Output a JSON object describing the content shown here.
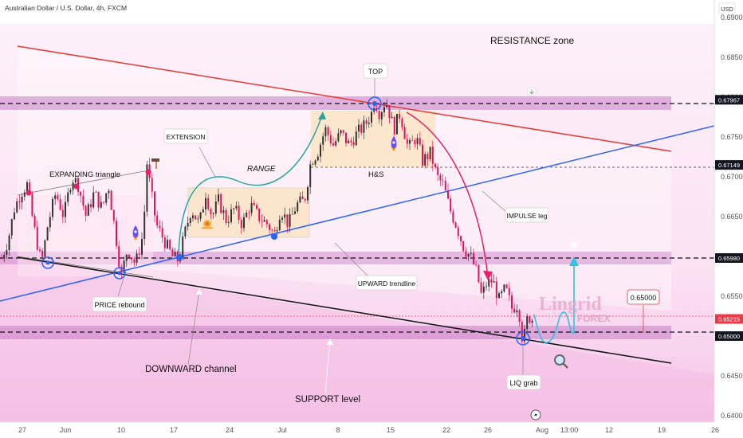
{
  "header": {
    "symbol_line": "Australian Dollar / U.S. Dollar, 4h, FXCM",
    "currency": "USD"
  },
  "chart_data": {
    "type": "candlestick",
    "title": "Australian Dollar / U.S. Dollar, 4h, FXCM",
    "y_axis": {
      "unit": "USD",
      "ylim": [
        0.6392,
        0.6922
      ],
      "ticks": [
        0.64,
        0.645,
        0.65,
        0.655,
        0.66,
        0.665,
        0.67,
        0.675,
        0.68,
        0.685,
        0.69
      ]
    },
    "x_axis": {
      "ticks": [
        "27",
        "Jun",
        "10",
        "17",
        "24",
        "Jul",
        "8",
        "15",
        "22",
        "26",
        "Aug",
        "13:00",
        "12",
        "19",
        "26"
      ]
    },
    "price_tags": [
      {
        "label": "0.67967",
        "value": 0.67967,
        "style": "dark"
      },
      {
        "label": "0.67149",
        "value": 0.67149,
        "style": "dark"
      },
      {
        "label": "0.65980",
        "value": 0.6598,
        "style": "dark"
      },
      {
        "label": "0.65215",
        "value": 0.65215,
        "style": "red"
      },
      {
        "label": "0.65000",
        "value": 0.65,
        "style": "dark"
      }
    ],
    "price_path": [
      [
        0,
        0.6592
      ],
      [
        10,
        0.662
      ],
      [
        18,
        0.666
      ],
      [
        26,
        0.668
      ],
      [
        34,
        0.669
      ],
      [
        42,
        0.664
      ],
      [
        52,
        0.659
      ],
      [
        60,
        0.664
      ],
      [
        70,
        0.668
      ],
      [
        80,
        0.665
      ],
      [
        90,
        0.67
      ],
      [
        98,
        0.669
      ],
      [
        108,
        0.665
      ],
      [
        118,
        0.668
      ],
      [
        128,
        0.666
      ],
      [
        136,
        0.669
      ],
      [
        146,
        0.662
      ],
      [
        152,
        0.6575
      ],
      [
        160,
        0.661
      ],
      [
        170,
        0.659
      ],
      [
        180,
        0.663
      ],
      [
        184,
        0.672
      ],
      [
        188,
        0.669
      ],
      [
        196,
        0.664
      ],
      [
        206,
        0.662
      ],
      [
        216,
        0.66
      ],
      [
        224,
        0.6595
      ],
      [
        232,
        0.663
      ],
      [
        240,
        0.666
      ],
      [
        250,
        0.664
      ],
      [
        258,
        0.668
      ],
      [
        266,
        0.665
      ],
      [
        274,
        0.667
      ],
      [
        284,
        0.6645
      ],
      [
        294,
        0.666
      ],
      [
        304,
        0.664
      ],
      [
        314,
        0.6665
      ],
      [
        324,
        0.665
      ],
      [
        336,
        0.664
      ],
      [
        344,
        0.6627
      ],
      [
        352,
        0.666
      ],
      [
        362,
        0.664
      ],
      [
        372,
        0.6665
      ],
      [
        382,
        0.667
      ],
      [
        390,
        0.672
      ],
      [
        398,
        0.673
      ],
      [
        408,
        0.676
      ],
      [
        418,
        0.674
      ],
      [
        428,
        0.6755
      ],
      [
        438,
        0.674
      ],
      [
        448,
        0.6755
      ],
      [
        458,
        0.6765
      ],
      [
        466,
        0.678
      ],
      [
        470,
        0.6797
      ],
      [
        476,
        0.678
      ],
      [
        484,
        0.6796
      ],
      [
        494,
        0.676
      ],
      [
        502,
        0.678
      ],
      [
        512,
        0.6735
      ],
      [
        522,
        0.675
      ],
      [
        530,
        0.672
      ],
      [
        540,
        0.673
      ],
      [
        548,
        0.67
      ],
      [
        556,
        0.669
      ],
      [
        564,
        0.666
      ],
      [
        572,
        0.664
      ],
      [
        582,
        0.661
      ],
      [
        590,
        0.66
      ],
      [
        598,
        0.658
      ],
      [
        604,
        0.655
      ],
      [
        610,
        0.6565
      ],
      [
        618,
        0.657
      ],
      [
        626,
        0.6545
      ],
      [
        634,
        0.656
      ],
      [
        642,
        0.6535
      ],
      [
        650,
        0.654
      ],
      [
        656,
        0.649
      ],
      [
        662,
        0.6525
      ],
      [
        668,
        0.6521
      ]
    ],
    "annotations": [
      "RESISTANCE zone",
      "TOP",
      "EXTENSION",
      "RANGE",
      "EXPANDING triangle",
      "H&S",
      "IMPULSE leg",
      "UPWARD trendline",
      "PRICE rebound",
      "DOWNWARD channel",
      "SUPPORT level",
      "LIQ grab",
      "0.65000"
    ],
    "colors": {
      "resistance_line": "#e53935",
      "trendline": "#2962ff",
      "channel_line": "#111111",
      "zone": "#c77bc5",
      "bg": "#fde8f6",
      "curve_green": "#26a69a",
      "curve_pink": "#e91e63",
      "projection": "#2ec4e6",
      "price_tag_red": "#f23645"
    }
  },
  "watermark": {
    "brand": "Lingrid",
    "sub": "FOREX"
  }
}
